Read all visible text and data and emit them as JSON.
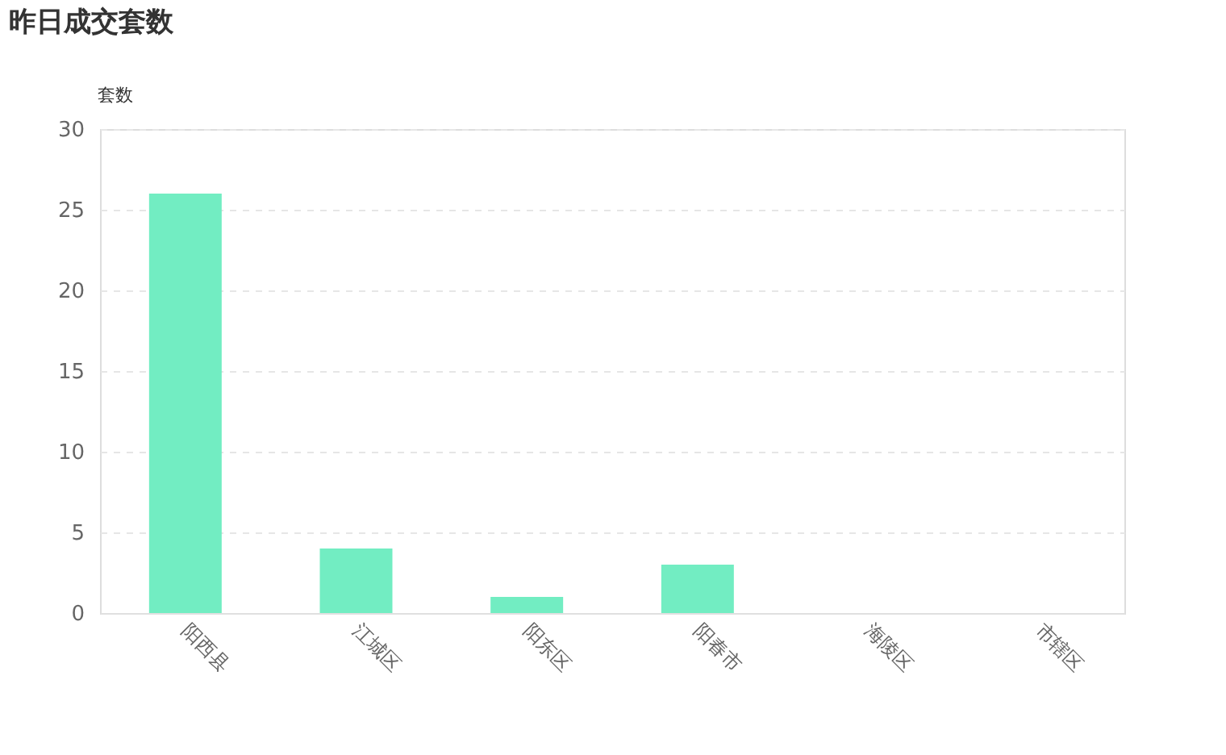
{
  "chart_data": {
    "type": "bar",
    "title": "昨日成交套数",
    "ylabel": "套数",
    "categories": [
      "阳西县",
      "江城区",
      "阳东区",
      "阳春市",
      "海陵区",
      "市辖区"
    ],
    "values": [
      26,
      4,
      1,
      3,
      0,
      0
    ],
    "color": "#72edc2",
    "ylim": [
      0,
      30
    ],
    "yticks": [
      0,
      5,
      10,
      15,
      20,
      25,
      30
    ],
    "grid": "y"
  }
}
